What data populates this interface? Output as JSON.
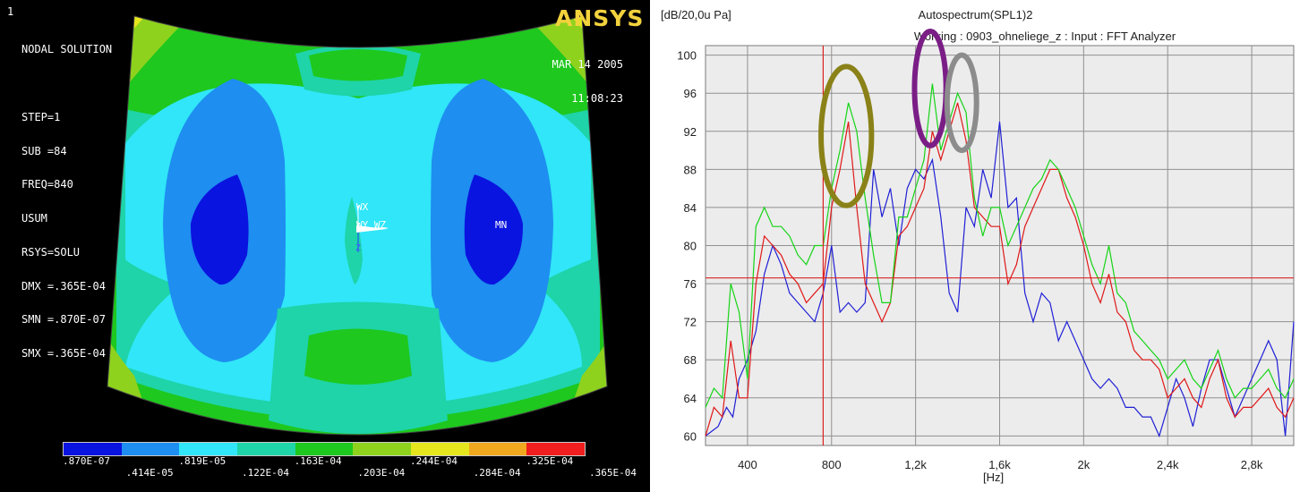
{
  "fea": {
    "corner_label": "1",
    "logo": "ANSYS",
    "info_lines": [
      "NODAL SOLUTION",
      "",
      "STEP=1",
      "SUB =84",
      "FREQ=840",
      "USUM",
      "RSYS=SOLU",
      "DMX =.365E-04",
      "SMN =.870E-07",
      "SMX =.365E-04"
    ],
    "date": "MAR 14 2005",
    "time": "11:08:23",
    "axis_labels": {
      "wx": "WX",
      "wyz": "WY WZ",
      "z": "Z",
      "mn": "MN"
    },
    "legend": {
      "colors": [
        "#0a14e0",
        "#1e8ef0",
        "#30e6f8",
        "#1ed4a8",
        "#1ec81e",
        "#8ed21e",
        "#e6e61e",
        "#f0a81e",
        "#f01e1e"
      ],
      "top_ticks": [
        ".870E-07",
        ".819E-05",
        ".163E-04",
        ".244E-04",
        ".325E-04"
      ],
      "bottom_ticks": [
        ".414E-05",
        ".122E-04",
        ".203E-04",
        ".284E-04",
        ".365E-04"
      ]
    }
  },
  "chart_data": {
    "type": "line",
    "title": "Autospectrum(SPL1)2",
    "subtitle": "Working : 0903_ohneliege_z : Input : FFT Analyzer",
    "ylabel": "[dB/20,0u Pa]",
    "xlabel": "[Hz]",
    "xlim": [
      200,
      3000
    ],
    "ylim": [
      59,
      101
    ],
    "yticks": [
      60,
      64,
      68,
      72,
      76,
      80,
      84,
      88,
      92,
      96,
      100
    ],
    "xticks": [
      {
        "value": 400,
        "label": "400"
      },
      {
        "value": 800,
        "label": "800"
      },
      {
        "value": 1200,
        "label": "1,2k"
      },
      {
        "value": 1600,
        "label": "1,6k"
      },
      {
        "value": 2000,
        "label": "2k"
      },
      {
        "value": 2400,
        "label": "2,4k"
      },
      {
        "value": 2800,
        "label": "2,8k"
      }
    ],
    "grid": true,
    "cursor": {
      "x": 760,
      "y": 76.6,
      "color": "#dd2222"
    },
    "series": [
      {
        "color": "#1f1fd6",
        "x": [
          200,
          260,
          300,
          330,
          360,
          400,
          440,
          480,
          520,
          560,
          600,
          640,
          680,
          720,
          760,
          800,
          840,
          880,
          920,
          960,
          1000,
          1040,
          1080,
          1120,
          1160,
          1200,
          1240,
          1280,
          1320,
          1360,
          1400,
          1440,
          1480,
          1520,
          1560,
          1600,
          1640,
          1680,
          1720,
          1760,
          1800,
          1840,
          1880,
          1920,
          1960,
          2000,
          2040,
          2080,
          2120,
          2160,
          2200,
          2240,
          2280,
          2320,
          2360,
          2400,
          2440,
          2480,
          2520,
          2560,
          2600,
          2640,
          2680,
          2720,
          2760,
          2800,
          2840,
          2880,
          2920,
          2960,
          3000
        ],
        "y": [
          60,
          61,
          63,
          62,
          66,
          68,
          71,
          77,
          80,
          78,
          75,
          74,
          73,
          72,
          75,
          80,
          73,
          74,
          73,
          74,
          88,
          83,
          86,
          80,
          86,
          88,
          87,
          89,
          83,
          75,
          73,
          84,
          82,
          88,
          85,
          93,
          84,
          85,
          75,
          72,
          75,
          74,
          70,
          72,
          70,
          68,
          66,
          65,
          66,
          65,
          63,
          63,
          62,
          62,
          60,
          63,
          66,
          64,
          61,
          65,
          68,
          68,
          65,
          62,
          64,
          66,
          68,
          70,
          68,
          60,
          72
        ]
      },
      {
        "color": "#e01818",
        "x": [
          200,
          240,
          280,
          320,
          360,
          400,
          440,
          480,
          520,
          560,
          600,
          640,
          680,
          720,
          760,
          800,
          840,
          880,
          920,
          960,
          1000,
          1040,
          1080,
          1120,
          1160,
          1200,
          1240,
          1280,
          1320,
          1360,
          1400,
          1440,
          1480,
          1520,
          1560,
          1600,
          1640,
          1680,
          1720,
          1760,
          1800,
          1840,
          1880,
          1920,
          1960,
          2000,
          2040,
          2080,
          2120,
          2160,
          2200,
          2240,
          2280,
          2320,
          2360,
          2400,
          2440,
          2480,
          2520,
          2560,
          2600,
          2640,
          2680,
          2720,
          2760,
          2800,
          2840,
          2880,
          2920,
          2960,
          3000
        ],
        "y": [
          60,
          63,
          62,
          70,
          64,
          64,
          76,
          81,
          80,
          79,
          77,
          76,
          74,
          75,
          76,
          84,
          88,
          93,
          84,
          76,
          74,
          72,
          74,
          81,
          82,
          84,
          86,
          92,
          89,
          92,
          95,
          91,
          84,
          83,
          82,
          82,
          76,
          78,
          82,
          84,
          86,
          88,
          88,
          85,
          83,
          80,
          76,
          74,
          77,
          73,
          72,
          69,
          68,
          68,
          67,
          64,
          65,
          66,
          64,
          63,
          66,
          68,
          64,
          62,
          63,
          63,
          64,
          65,
          63,
          62,
          64
        ]
      },
      {
        "color": "#16d416",
        "x": [
          200,
          240,
          280,
          320,
          360,
          400,
          440,
          480,
          520,
          560,
          600,
          640,
          680,
          720,
          760,
          800,
          840,
          880,
          920,
          960,
          1000,
          1040,
          1080,
          1120,
          1160,
          1200,
          1240,
          1280,
          1320,
          1360,
          1400,
          1440,
          1480,
          1520,
          1560,
          1600,
          1640,
          1680,
          1720,
          1760,
          1800,
          1840,
          1880,
          1920,
          1960,
          2000,
          2040,
          2080,
          2120,
          2160,
          2200,
          2240,
          2280,
          2320,
          2360,
          2400,
          2440,
          2480,
          2520,
          2560,
          2600,
          2640,
          2680,
          2720,
          2760,
          2800,
          2840,
          2880,
          2920,
          2960,
          3000
        ],
        "y": [
          63,
          65,
          64,
          76,
          73,
          66,
          82,
          84,
          82,
          82,
          81,
          79,
          78,
          80,
          80,
          86,
          90,
          95,
          92,
          85,
          79,
          74,
          74,
          83,
          83,
          86,
          89,
          97,
          90,
          93,
          96,
          94,
          85,
          81,
          84,
          84,
          80,
          82,
          84,
          86,
          87,
          89,
          88,
          86,
          84,
          81,
          78,
          76,
          80,
          75,
          74,
          71,
          70,
          69,
          68,
          66,
          67,
          68,
          66,
          65,
          67,
          69,
          66,
          64,
          65,
          65,
          66,
          67,
          65,
          64,
          66
        ]
      }
    ],
    "annotations": [
      {
        "color": "#8a8218",
        "cx": 870,
        "cy": 91.5,
        "rx": 120,
        "ry": 7.3
      },
      {
        "color": "#7a1e86",
        "cx": 1270,
        "cy": 96.5,
        "rx": 75,
        "ry": 6.0
      },
      {
        "color": "#8c8c8c",
        "cx": 1420,
        "cy": 95,
        "rx": 70,
        "ry": 5.0
      }
    ]
  }
}
